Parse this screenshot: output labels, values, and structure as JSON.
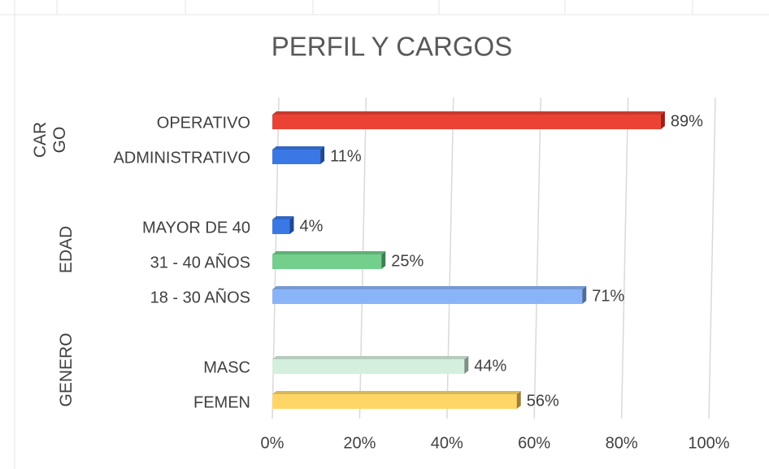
{
  "chart_data": {
    "type": "bar",
    "orientation": "horizontal",
    "title": "PERFIL Y CARGOS",
    "categories": [
      "OPERATIVO",
      "ADMINISTRATIVO",
      null,
      "MAYOR DE 40",
      "31 - 40 AÑOS",
      "18 - 30 AÑOS",
      null,
      "MASC",
      "FEMEN"
    ],
    "values": [
      89,
      11,
      null,
      4,
      25,
      71,
      null,
      44,
      56
    ],
    "value_labels": [
      "89%",
      "11%",
      null,
      "4%",
      "25%",
      "71%",
      null,
      "44%",
      "56%"
    ],
    "colors": [
      "#ea4335",
      "#3a78e6",
      null,
      "#3a78e6",
      "#72cf8c",
      "#8ab4f8",
      null,
      "#d5efdd",
      "#ffd666"
    ],
    "group_labels": [
      "CARGO",
      "EDAD",
      "GENERO"
    ],
    "xlim": [
      0,
      100
    ],
    "xticks": [
      {
        "value": 0,
        "label": "0%"
      },
      {
        "value": 20,
        "label": "20%"
      },
      {
        "value": 40,
        "label": "40%"
      },
      {
        "value": 60,
        "label": "60%"
      },
      {
        "value": 80,
        "label": "80%"
      },
      {
        "value": 100,
        "label": "100%"
      }
    ],
    "grid": true
  }
}
